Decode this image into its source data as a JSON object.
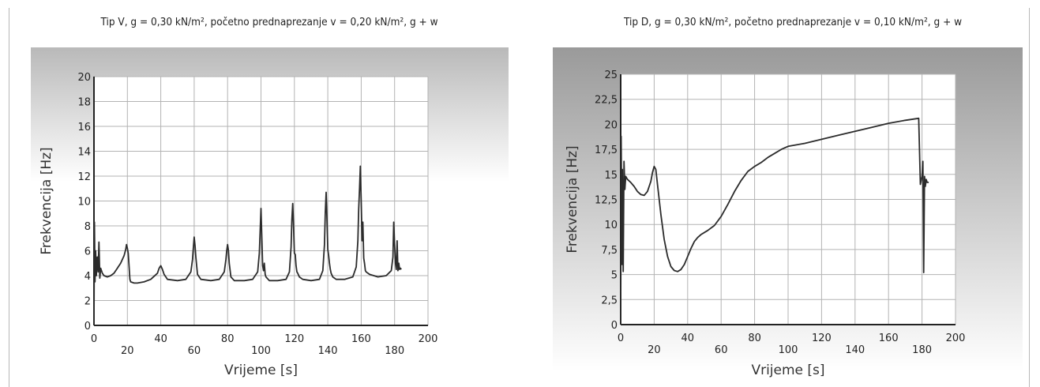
{
  "chart_data": [
    {
      "type": "line",
      "title": "Tip V,  g = 0,30 kN/m², početno prednaprezanje v = 0,20 kN/m², g + w",
      "xlabel": "Vrijeme [s]",
      "ylabel": "Frekvencija [Hz]",
      "xlim": [
        0,
        200
      ],
      "ylim": [
        0,
        20
      ],
      "x_ticks_top": [
        "0",
        "40",
        "80",
        "120",
        "160",
        "200"
      ],
      "x_tick_values_top": [
        0,
        40,
        80,
        120,
        160,
        200
      ],
      "x_ticks_bottom": [
        "20",
        "60",
        "100",
        "140",
        "180"
      ],
      "x_tick_values_bottom": [
        20,
        60,
        100,
        140,
        180
      ],
      "y_ticks": [
        "0",
        "2",
        "4",
        "6",
        "8",
        "10",
        "12",
        "14",
        "16",
        "18",
        "20"
      ],
      "y_tick_values": [
        0,
        2,
        4,
        6,
        8,
        10,
        12,
        14,
        16,
        18,
        20
      ],
      "grid": true,
      "series": [
        {
          "x": [
            0,
            0.3,
            0.6,
            1.0,
            1.4,
            2.0,
            2.5,
            3.0,
            3.5,
            4.0,
            5,
            6,
            8,
            10,
            12,
            14,
            16,
            18,
            19,
            19.5,
            20,
            20.5,
            21,
            21.5,
            22,
            24,
            26,
            30,
            34,
            38,
            39,
            40,
            41,
            42,
            44,
            50,
            55,
            58,
            59,
            59.5,
            60,
            60.5,
            61,
            62,
            64,
            70,
            75,
            78,
            79,
            79.5,
            80,
            80.5,
            81,
            82,
            84,
            90,
            95,
            98,
            99,
            99.5,
            100,
            100.5,
            101,
            101.5,
            102,
            102.5,
            103,
            105,
            110,
            115,
            117,
            118,
            118.5,
            119,
            119.5,
            120,
            120.5,
            121,
            121.5,
            122,
            123,
            125,
            130,
            135,
            137,
            138,
            138.5,
            139,
            139.5,
            140,
            140.5,
            141,
            141.5,
            142,
            143,
            145,
            150,
            155,
            157,
            158,
            158.5,
            159,
            159.5,
            160,
            160.5,
            161,
            161.5,
            162,
            162.5,
            163,
            165,
            170,
            175,
            178,
            179,
            179.5,
            180,
            180.5,
            181,
            181.5,
            182,
            182.5,
            183,
            183.5,
            184
          ],
          "y": [
            0,
            8.3,
            3.5,
            6.0,
            4.0,
            5.5,
            4.3,
            6.7,
            3.8,
            4.6,
            4.2,
            4.0,
            3.9,
            4.0,
            4.2,
            4.6,
            5.0,
            5.6,
            6.1,
            6.5,
            6.2,
            5.8,
            4.8,
            3.7,
            3.5,
            3.4,
            3.4,
            3.5,
            3.7,
            4.2,
            4.6,
            4.8,
            4.5,
            4.1,
            3.7,
            3.6,
            3.7,
            4.3,
            5.3,
            6.2,
            7.1,
            6.4,
            5.5,
            4.1,
            3.7,
            3.6,
            3.7,
            4.3,
            5.3,
            6.0,
            6.5,
            6.0,
            5.0,
            3.9,
            3.6,
            3.6,
            3.7,
            4.3,
            5.8,
            7.5,
            9.4,
            7.0,
            4.8,
            4.4,
            5.0,
            4.1,
            3.9,
            3.6,
            3.6,
            3.7,
            4.3,
            6.3,
            8.5,
            9.8,
            8.0,
            5.8,
            5.7,
            4.8,
            4.3,
            4.2,
            3.9,
            3.7,
            3.6,
            3.7,
            4.4,
            6.5,
            9.0,
            10.7,
            8.7,
            6.1,
            5.6,
            5.0,
            4.5,
            4.2,
            3.9,
            3.7,
            3.7,
            3.9,
            4.7,
            6.8,
            9.3,
            11.0,
            12.8,
            10.0,
            6.8,
            8.3,
            5.4,
            5.0,
            4.4,
            4.3,
            4.1,
            3.9,
            4.0,
            4.4,
            5.5,
            8.3,
            6.5,
            5.0,
            4.5,
            6.8,
            4.4,
            5.0,
            4.5,
            4.6,
            4.5
          ]
        }
      ]
    },
    {
      "type": "line",
      "title": "Tip D,  g = 0,30 kN/m², početno prednaprezanje v = 0,10 kN/m², g + w",
      "xlabel": "Vrijeme [s]",
      "ylabel": "Frekvencija [Hz]",
      "xlim": [
        0,
        200
      ],
      "ylim": [
        0,
        25
      ],
      "x_ticks_top": [
        "0",
        "40",
        "80",
        "120",
        "160",
        "200"
      ],
      "x_tick_values_top": [
        0,
        40,
        80,
        120,
        160,
        200
      ],
      "x_ticks_bottom": [
        "20",
        "60",
        "100",
        "140",
        "180"
      ],
      "x_tick_values_bottom": [
        20,
        60,
        100,
        140,
        180
      ],
      "y_ticks": [
        "0",
        "2,5",
        "5",
        "7,5",
        "10",
        "12,5",
        "15",
        "17,5",
        "20",
        "22,5",
        "25"
      ],
      "y_tick_values": [
        0,
        2.5,
        5,
        7.5,
        10,
        12.5,
        15,
        17.5,
        20,
        22.5,
        25
      ],
      "grid": true,
      "series": [
        {
          "x": [
            0,
            0.3,
            0.8,
            1.0,
            1.5,
            2.0,
            2.5,
            3.0,
            4,
            6,
            8,
            10,
            12,
            14,
            16,
            18,
            19,
            20,
            21,
            22,
            24,
            26,
            28,
            30,
            32,
            34,
            36,
            38,
            40,
            42,
            44,
            46,
            48,
            52,
            56,
            60,
            64,
            68,
            72,
            76,
            80,
            84,
            88,
            92,
            96,
            100,
            110,
            120,
            130,
            140,
            150,
            160,
            170,
            178,
            179,
            180,
            180.5,
            181,
            181.5,
            182,
            182.5,
            183,
            184
          ],
          "y": [
            0,
            18.8,
            6.0,
            15.5,
            5.3,
            16.3,
            13.5,
            14.8,
            14.5,
            14.2,
            13.8,
            13.3,
            13.0,
            12.9,
            13.3,
            14.3,
            15.2,
            15.8,
            15.5,
            14.0,
            11.0,
            8.5,
            6.8,
            5.8,
            5.4,
            5.3,
            5.5,
            6.0,
            6.8,
            7.6,
            8.3,
            8.7,
            9.0,
            9.4,
            9.9,
            10.8,
            12.0,
            13.3,
            14.4,
            15.3,
            15.8,
            16.2,
            16.7,
            17.1,
            17.5,
            17.8,
            18.1,
            18.5,
            18.9,
            19.3,
            19.7,
            20.1,
            20.4,
            20.6,
            14.0,
            14.8,
            16.3,
            5.2,
            14.8,
            13.8,
            14.5,
            14.2,
            14.2
          ]
        }
      ]
    }
  ]
}
